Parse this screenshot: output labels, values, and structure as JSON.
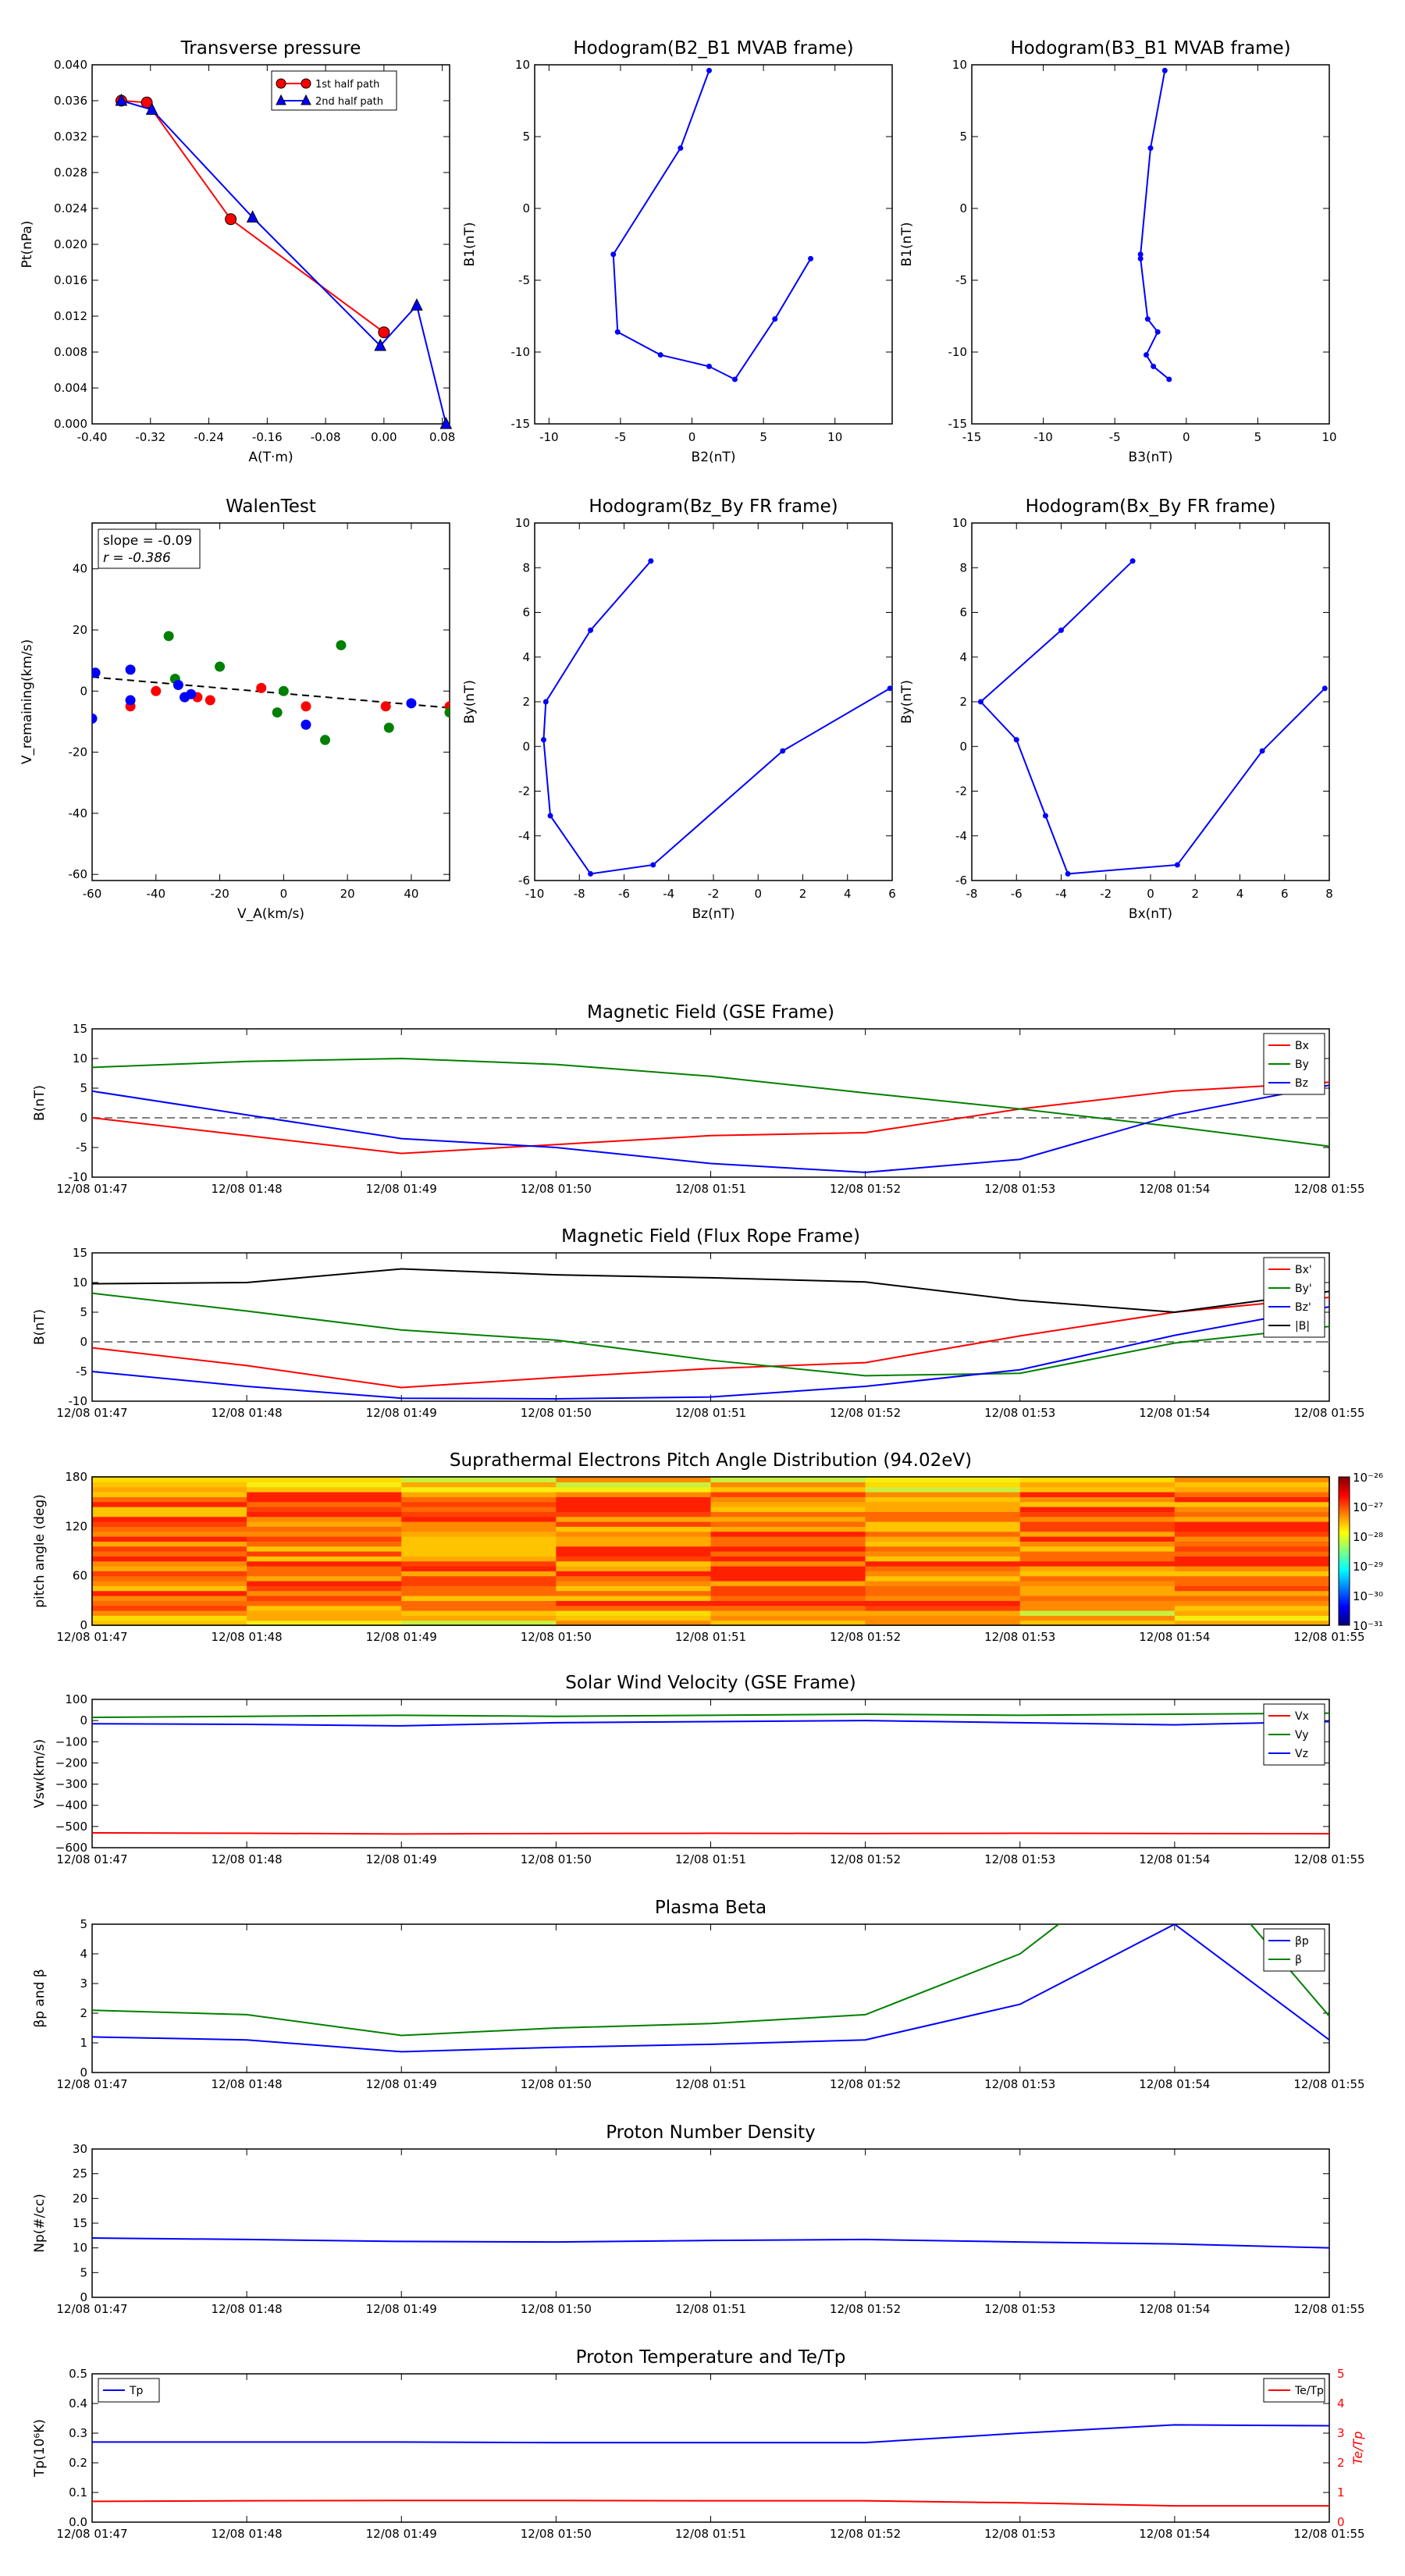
{
  "time_ticks": [
    "12/08 01:47",
    "12/08 01:48",
    "12/08 01:49",
    "12/08 01:50",
    "12/08 01:51",
    "12/08 01:52",
    "12/08 01:53",
    "12/08 01:54",
    "12/08 01:55"
  ],
  "colors": {
    "red": "#ff0000",
    "green": "#008000",
    "blue": "#0000ff",
    "black": "#000000",
    "gray": "#808080"
  },
  "chart_data": [
    {
      "id": "transverse",
      "type": "line",
      "title": "Transverse pressure",
      "xlabel": "A(T·m)",
      "ylabel": "Pt(nPa)",
      "xlim": [
        -0.4,
        0.09
      ],
      "ylim": [
        0.0,
        0.04
      ],
      "xticks": [
        "-0.40",
        "-0.32",
        "-0.24",
        "-0.16",
        "-0.08",
        "0.00",
        "0.08"
      ],
      "yticks": [
        "0.000",
        "0.004",
        "0.008",
        "0.012",
        "0.016",
        "0.020",
        "0.024",
        "0.028",
        "0.032",
        "0.036",
        "0.040"
      ],
      "legend": "upper-center",
      "series": [
        {
          "name": "1st half path",
          "color": "#ff0000",
          "marker": "circle",
          "x": [
            0.0,
            -0.21,
            -0.325,
            -0.36
          ],
          "y": [
            0.0102,
            0.0228,
            0.0358,
            0.036
          ]
        },
        {
          "name": "2nd half path",
          "color": "#0000ff",
          "marker": "triangle",
          "x": [
            -0.36,
            -0.318,
            -0.18,
            -0.005,
            0.045,
            0.085
          ],
          "y": [
            0.036,
            0.035,
            0.023,
            0.0087,
            0.0132,
            0.0
          ]
        }
      ]
    },
    {
      "id": "hodo_b2b1",
      "type": "line",
      "title": "Hodogram(B2_B1 MVAB frame)",
      "xlabel": "B2(nT)",
      "ylabel": "B1(nT)",
      "xlim": [
        -11,
        14
      ],
      "ylim": [
        -15,
        10
      ],
      "xticks": [
        "-10",
        "-5",
        "0",
        "5",
        "10"
      ],
      "yticks": [
        "-15",
        "-10",
        "-5",
        "0",
        "5",
        "10"
      ],
      "series": [
        {
          "name": "",
          "color": "#0000ff",
          "marker": "dot",
          "x": [
            1.2,
            -0.8,
            -5.5,
            -5.2,
            -2.2,
            1.2,
            3.0,
            5.8,
            8.3
          ],
          "y": [
            9.6,
            4.2,
            -3.2,
            -8.6,
            -10.2,
            -11.0,
            -11.9,
            -7.7,
            -3.5
          ]
        }
      ]
    },
    {
      "id": "hodo_b3b1",
      "type": "line",
      "title": "Hodogram(B3_B1 MVAB frame)",
      "xlabel": "B3(nT)",
      "ylabel": "B1(nT)",
      "xlim": [
        -15,
        10
      ],
      "ylim": [
        -15,
        10
      ],
      "xticks": [
        "-15",
        "-10",
        "-5",
        "0",
        "5",
        "10"
      ],
      "yticks": [
        "-15",
        "-10",
        "-5",
        "0",
        "5",
        "10"
      ],
      "series": [
        {
          "name": "",
          "color": "#0000ff",
          "marker": "dot",
          "x": [
            -1.5,
            -2.5,
            -3.2,
            -3.2,
            -2.7,
            -2.0,
            -2.8,
            -2.3,
            -1.2
          ],
          "y": [
            9.6,
            4.2,
            -3.2,
            -3.5,
            -7.7,
            -8.6,
            -10.2,
            -11.0,
            -11.9
          ]
        }
      ]
    },
    {
      "id": "walen",
      "type": "scatter",
      "title": "WalenTest",
      "xlabel": "V_A(km/s)",
      "ylabel": "V_remaining(km/s)",
      "xlim": [
        -60,
        52
      ],
      "ylim": [
        -62,
        55
      ],
      "xticks": [
        "-60",
        "-40",
        "-20",
        "0",
        "20",
        "40"
      ],
      "yticks": [
        "-60",
        "-40",
        "-20",
        "0",
        "20",
        "40"
      ],
      "annotation": [
        "slope = -0.09",
        "r = -0.386"
      ],
      "fit": {
        "slope": -0.09,
        "intercept": -0.8
      },
      "series": [
        {
          "name": "",
          "color": "#ff0000",
          "x": [
            -48,
            -40,
            -31,
            -27,
            -23,
            -7,
            7,
            32,
            52
          ],
          "y": [
            -5,
            0,
            -2,
            -2,
            -3,
            1,
            -5,
            -5,
            -5
          ]
        },
        {
          "name": "",
          "color": "#008000",
          "x": [
            -36,
            -34,
            -20,
            -2,
            0,
            13,
            18,
            33,
            52
          ],
          "y": [
            18,
            4,
            8,
            -7,
            0,
            -16,
            15,
            -12,
            -7
          ]
        },
        {
          "name": "",
          "color": "#0000ff",
          "x": [
            -60,
            -59,
            -48,
            -48,
            -33,
            -31,
            -29,
            7,
            40
          ],
          "y": [
            -9,
            6,
            7,
            -3,
            2,
            -2,
            -1,
            -11,
            -4
          ]
        }
      ]
    },
    {
      "id": "hodo_bzby",
      "type": "line",
      "title": "Hodogram(Bz_By FR frame)",
      "xlabel": "Bz(nT)",
      "ylabel": "By(nT)",
      "xlim": [
        -10,
        6
      ],
      "ylim": [
        -6,
        10
      ],
      "xticks": [
        "-10",
        "-8",
        "-6",
        "-4",
        "-2",
        "0",
        "2",
        "4",
        "6"
      ],
      "yticks": [
        "-6",
        "-4",
        "-2",
        "0",
        "2",
        "4",
        "6",
        "8",
        "10"
      ],
      "series": [
        {
          "name": "",
          "color": "#0000ff",
          "marker": "dot",
          "x": [
            -4.8,
            -7.5,
            -9.5,
            -9.6,
            -9.3,
            -7.5,
            -4.7,
            1.1,
            5.9
          ],
          "y": [
            8.3,
            5.2,
            2.0,
            0.3,
            -3.1,
            -5.7,
            -5.3,
            -0.2,
            2.6
          ]
        }
      ]
    },
    {
      "id": "hodo_bxby",
      "type": "line",
      "title": "Hodogram(Bx_By FR frame)",
      "xlabel": "Bx(nT)",
      "ylabel": "By(nT)",
      "xlim": [
        -8,
        8
      ],
      "ylim": [
        -6,
        10
      ],
      "xticks": [
        "-8",
        "-6",
        "-4",
        "-2",
        "0",
        "2",
        "4",
        "6",
        "8"
      ],
      "yticks": [
        "-6",
        "-4",
        "-2",
        "0",
        "2",
        "4",
        "6",
        "8",
        "10"
      ],
      "series": [
        {
          "name": "",
          "color": "#0000ff",
          "marker": "dot",
          "x": [
            -0.8,
            -4.0,
            -7.6,
            -6.0,
            -4.7,
            -3.7,
            1.2,
            5.0,
            7.8
          ],
          "y": [
            8.3,
            5.2,
            2.0,
            0.3,
            -3.1,
            -5.7,
            -5.3,
            -0.2,
            2.6
          ]
        }
      ]
    },
    {
      "id": "mag_gse",
      "type": "line",
      "title": "Magnetic Field (GSE Frame)",
      "xlabel": "",
      "ylabel": "B(nT)",
      "ylim": [
        -10,
        15
      ],
      "yticks": [
        "-10",
        "-5",
        "0",
        "5",
        "10",
        "15"
      ],
      "zero_line": true,
      "legend": "top-right",
      "series": [
        {
          "name": "Bx",
          "color": "#ff0000",
          "values": [
            0,
            -3,
            -6,
            -4.5,
            -3,
            -2.5,
            1.5,
            4.5,
            6
          ]
        },
        {
          "name": "By",
          "color": "#008000",
          "values": [
            8.5,
            9.5,
            10,
            9,
            7,
            4.2,
            1.5,
            -1.5,
            -4.8
          ]
        },
        {
          "name": "Bz",
          "color": "#0000ff",
          "values": [
            4.5,
            0.5,
            -3.5,
            -5,
            -7.7,
            -9.2,
            -7,
            0.5,
            5.5
          ]
        }
      ]
    },
    {
      "id": "mag_fr",
      "type": "line",
      "title": "Magnetic Field (Flux Rope Frame)",
      "xlabel": "",
      "ylabel": "B(nT)",
      "ylim": [
        -10,
        15
      ],
      "yticks": [
        "-10",
        "-5",
        "0",
        "5",
        "10",
        "15"
      ],
      "zero_line": true,
      "legend": "top-right",
      "series": [
        {
          "name": "Bx'",
          "color": "#ff0000",
          "values": [
            -1,
            -4,
            -7.7,
            -6,
            -4.5,
            -3.5,
            1,
            5,
            7.5
          ]
        },
        {
          "name": "By'",
          "color": "#008000",
          "values": [
            8.2,
            5.2,
            2,
            0.3,
            -3.1,
            -5.7,
            -5.3,
            -0.2,
            2.6
          ]
        },
        {
          "name": "Bz'",
          "color": "#0000ff",
          "values": [
            -5,
            -7.5,
            -9.5,
            -9.6,
            -9.3,
            -7.5,
            -4.7,
            1.1,
            5.9
          ]
        },
        {
          "name": "|B|",
          "color": "#000000",
          "values": [
            9.8,
            10,
            12.3,
            11.3,
            10.8,
            10.1,
            7,
            5,
            8.5
          ]
        }
      ]
    },
    {
      "id": "pad",
      "type": "heatmap",
      "title": "Suprathermal Electrons Pitch Angle Distribution (94.02eV)",
      "xlabel": "",
      "ylabel": "pitch angle (deg)",
      "ylim": [
        0,
        180
      ],
      "yticks": [
        "0",
        "60",
        "120",
        "180"
      ],
      "colorbar_ticks": [
        "10⁻²⁶",
        "10⁻²⁷",
        "10⁻²⁸",
        "10⁻²⁹",
        "10⁻³⁰",
        "10⁻³¹"
      ],
      "colorbar_levels": [
        -26,
        -27,
        -28,
        -29,
        -30,
        -31
      ],
      "colormap": "jet",
      "columns": 8,
      "rows": 30
    },
    {
      "id": "vsw",
      "type": "line",
      "title": "Solar Wind Velocity (GSE Frame)",
      "xlabel": "",
      "ylabel": "Vsw(km/s)",
      "ylim": [
        -600,
        100
      ],
      "yticks": [
        "−600",
        "−500",
        "−400",
        "−300",
        "−200",
        "−100",
        "0",
        "100"
      ],
      "legend": "top-right",
      "series": [
        {
          "name": "Vx",
          "color": "#ff0000",
          "values": [
            -530,
            -532,
            -535,
            -533,
            -532,
            -533,
            -532,
            -533,
            -534
          ]
        },
        {
          "name": "Vy",
          "color": "#008000",
          "values": [
            15,
            20,
            25,
            20,
            25,
            30,
            25,
            30,
            35
          ]
        },
        {
          "name": "Vz",
          "color": "#0000ff",
          "values": [
            -15,
            -18,
            -25,
            -10,
            -5,
            0,
            -10,
            -20,
            -5
          ]
        }
      ]
    },
    {
      "id": "beta",
      "type": "line",
      "title": "Plasma Beta",
      "xlabel": "",
      "ylabel": "βp and β",
      "ylim": [
        0,
        5
      ],
      "yticks": [
        "0",
        "1",
        "2",
        "3",
        "4",
        "5"
      ],
      "legend": "top-right",
      "series": [
        {
          "name": "βp",
          "color": "#0000ff",
          "values": [
            1.2,
            1.1,
            0.7,
            0.85,
            0.95,
            1.1,
            2.3,
            5.0,
            1.1
          ]
        },
        {
          "name": "β",
          "color": "#008000",
          "values": [
            2.1,
            1.95,
            1.25,
            1.5,
            1.65,
            1.95,
            4.0,
            8.0,
            1.9
          ]
        }
      ]
    },
    {
      "id": "density",
      "type": "line",
      "title": "Proton Number Density",
      "xlabel": "",
      "ylabel": "Np(#/cc)",
      "ylim": [
        0,
        30
      ],
      "yticks": [
        "0",
        "5",
        "10",
        "15",
        "20",
        "25",
        "30"
      ],
      "series": [
        {
          "name": "",
          "color": "#0000ff",
          "values": [
            12.0,
            11.7,
            11.3,
            11.2,
            11.5,
            11.7,
            11.2,
            10.8,
            10.0
          ]
        }
      ]
    },
    {
      "id": "temp",
      "type": "line",
      "title": "Proton Temperature and Te/Tp",
      "xlabel": "",
      "ylabel": "Tp(10⁶K)",
      "y2label": "Te/Tp",
      "ylim": [
        0,
        0.5
      ],
      "y2lim": [
        0,
        5
      ],
      "yticks": [
        "0.0",
        "0.1",
        "0.2",
        "0.3",
        "0.4",
        "0.5"
      ],
      "y2ticks": [
        "0",
        "1",
        "2",
        "3",
        "4",
        "5"
      ],
      "series": [
        {
          "name": "Tp",
          "color": "#0000ff",
          "axis": "left",
          "values": [
            0.27,
            0.27,
            0.27,
            0.268,
            0.268,
            0.268,
            0.3,
            0.328,
            0.325
          ]
        },
        {
          "name": "Te/Tp",
          "color": "#ff0000",
          "axis": "right",
          "values": [
            0.7,
            0.72,
            0.73,
            0.73,
            0.72,
            0.72,
            0.65,
            0.55,
            0.55
          ]
        }
      ]
    }
  ]
}
